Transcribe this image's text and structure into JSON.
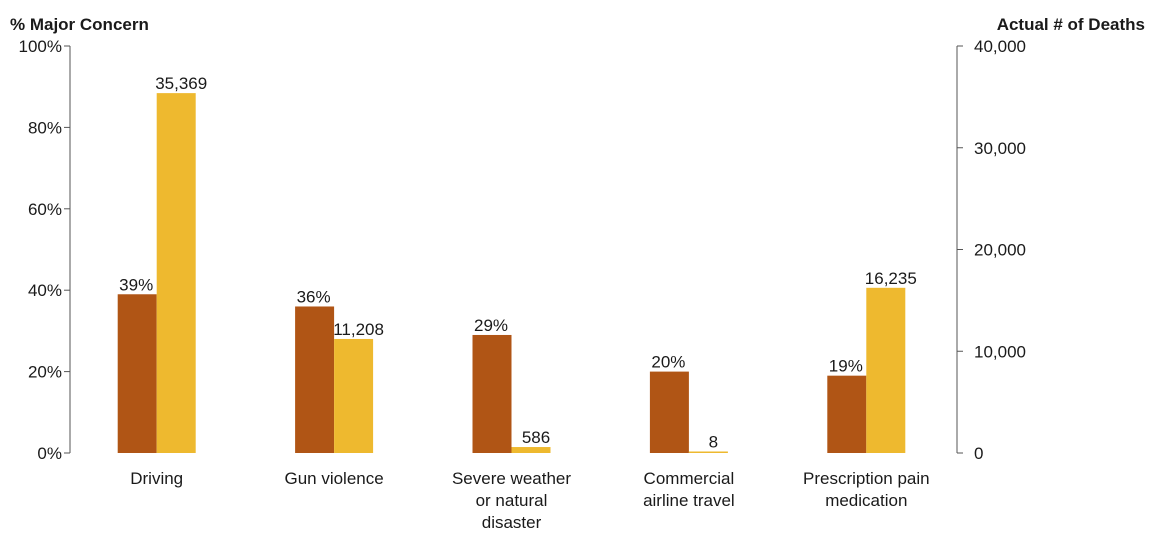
{
  "chart_data": {
    "type": "bar",
    "left_axis_title": "% Major Concern",
    "right_axis_title": "Actual # of Deaths",
    "categories": [
      [
        "Driving"
      ],
      [
        "Gun violence"
      ],
      [
        "Severe weather",
        "or natural",
        "disaster"
      ],
      [
        "Commercial",
        "airline travel"
      ],
      [
        "Prescription pain",
        "medication"
      ]
    ],
    "series": [
      {
        "axis": "left",
        "color": "#b05515",
        "values": [
          39,
          36,
          29,
          20,
          19
        ],
        "labels": [
          "39%",
          "36%",
          "29%",
          "20%",
          "19%"
        ]
      },
      {
        "axis": "right",
        "color": "#eeb92f",
        "values": [
          35369,
          11208,
          586,
          8,
          16235
        ],
        "labels": [
          "35,369",
          "11,208",
          "586",
          "8",
          "16,235"
        ]
      }
    ],
    "left_ylim": [
      0,
      100
    ],
    "left_ticks": [
      0,
      20,
      40,
      60,
      80,
      100
    ],
    "left_tick_labels": [
      "0%",
      "20%",
      "40%",
      "60%",
      "80%",
      "100%"
    ],
    "right_ylim": [
      0,
      40000
    ],
    "right_ticks": [
      0,
      10000,
      20000,
      30000,
      40000
    ],
    "right_tick_labels": [
      "0",
      "10,000",
      "20,000",
      "30,000",
      "40,000"
    ],
    "grid": false,
    "legend": "none"
  }
}
